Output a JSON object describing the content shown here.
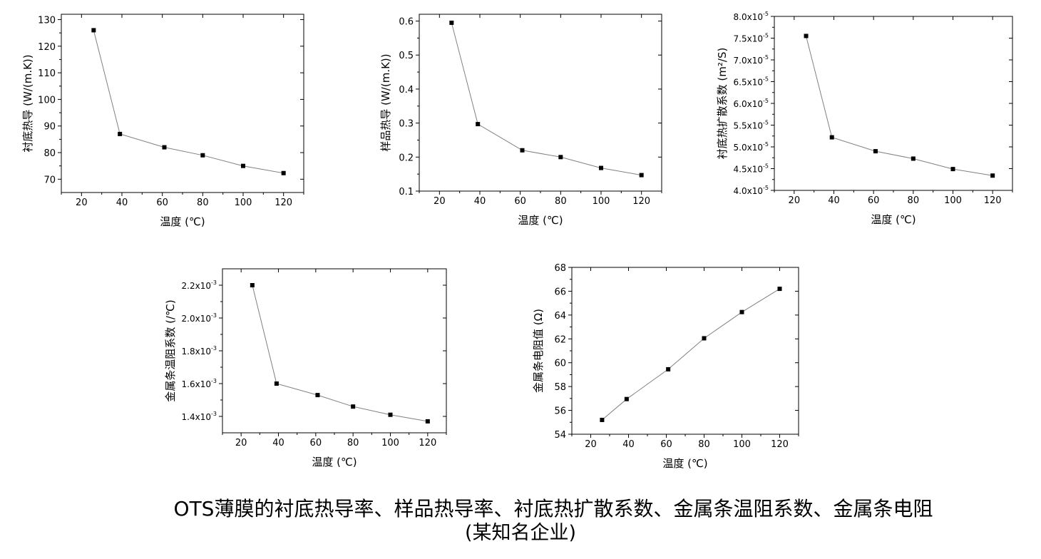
{
  "caption": {
    "line1": "OTS薄膜的衬底热导率、样品热导率、衬底热扩散系数、金属条温阻系数、金属条电阻",
    "line2": "(某知名企业)"
  },
  "chart_data": [
    {
      "type": "line",
      "xlabel": "温度 (℃)",
      "ylabel": "衬底热导 (W/(m.K))",
      "xlim": [
        10,
        130
      ],
      "ylim": [
        65,
        132
      ],
      "xticks": [
        20,
        40,
        60,
        80,
        100,
        120
      ],
      "yticks": [
        70,
        80,
        90,
        100,
        110,
        120,
        130
      ],
      "x": [
        26,
        39,
        61,
        80,
        100,
        120
      ],
      "y": [
        126,
        87,
        82,
        79,
        75,
        72.3
      ],
      "marker": "square",
      "line_color": "#808080",
      "grid": false
    },
    {
      "type": "line",
      "xlabel": "温度 (℃)",
      "ylabel": "样品热导 (W/(m.K))",
      "xlim": [
        10,
        130
      ],
      "ylim": [
        0.1,
        0.62
      ],
      "xticks": [
        20,
        40,
        60,
        80,
        100,
        120
      ],
      "yticks": [
        0.1,
        0.2,
        0.3,
        0.4,
        0.5,
        0.6
      ],
      "x": [
        26,
        39,
        61,
        80,
        100,
        120
      ],
      "y": [
        0.595,
        0.297,
        0.22,
        0.2,
        0.168,
        0.147
      ],
      "marker": "square",
      "line_color": "#808080",
      "grid": false
    },
    {
      "type": "line",
      "xlabel": "温度 (℃)",
      "ylabel": "衬底热扩散系数 (m²/S)",
      "xlim": [
        10,
        130
      ],
      "ylim": [
        4e-05,
        8e-05
      ],
      "xticks": [
        20,
        40,
        60,
        80,
        100,
        120
      ],
      "yticks": [
        4e-05,
        4.5e-05,
        5e-05,
        5.5e-05,
        6e-05,
        6.5e-05,
        7e-05,
        7.5e-05,
        8e-05
      ],
      "ytick_mantissa": [
        "4.0",
        "4.5",
        "5.0",
        "5.5",
        "6.0",
        "6.5",
        "7.0",
        "7.5",
        "8.0"
      ],
      "ytick_exponent": "-5",
      "x": [
        26,
        39,
        61,
        80,
        100,
        120
      ],
      "y": [
        7.55e-05,
        5.22e-05,
        4.9e-05,
        4.73e-05,
        4.49e-05,
        4.34e-05
      ],
      "marker": "square",
      "line_color": "#808080",
      "grid": false
    },
    {
      "type": "line",
      "xlabel": "温度 (℃)",
      "ylabel": "金属条温阻系数 (/℃)",
      "xlim": [
        10,
        130
      ],
      "ylim": [
        0.0013,
        0.0023
      ],
      "xticks": [
        20,
        40,
        60,
        80,
        100,
        120
      ],
      "yticks": [
        0.0014,
        0.0016,
        0.0018,
        0.002,
        0.0022
      ],
      "ytick_mantissa": [
        "1.4",
        "1.6",
        "1.8",
        "2.0",
        "2.2"
      ],
      "ytick_exponent": "-3",
      "x": [
        26,
        39,
        61,
        80,
        100,
        120
      ],
      "y": [
        0.0022,
        0.0016,
        0.00153,
        0.00146,
        0.00141,
        0.00137
      ],
      "marker": "square",
      "line_color": "#808080",
      "grid": false
    },
    {
      "type": "line",
      "xlabel": "温度 (℃)",
      "ylabel": "金属条电阻值 (Ω)",
      "xlim": [
        10,
        130
      ],
      "ylim": [
        54,
        68
      ],
      "xticks": [
        20,
        40,
        60,
        80,
        100,
        120
      ],
      "yticks": [
        54,
        56,
        58,
        60,
        62,
        64,
        66,
        68
      ],
      "x": [
        26,
        39,
        61,
        80,
        100,
        120
      ],
      "y": [
        55.2,
        56.95,
        59.45,
        62.05,
        64.25,
        66.2
      ],
      "marker": "square",
      "line_color": "#808080",
      "grid": false
    }
  ]
}
